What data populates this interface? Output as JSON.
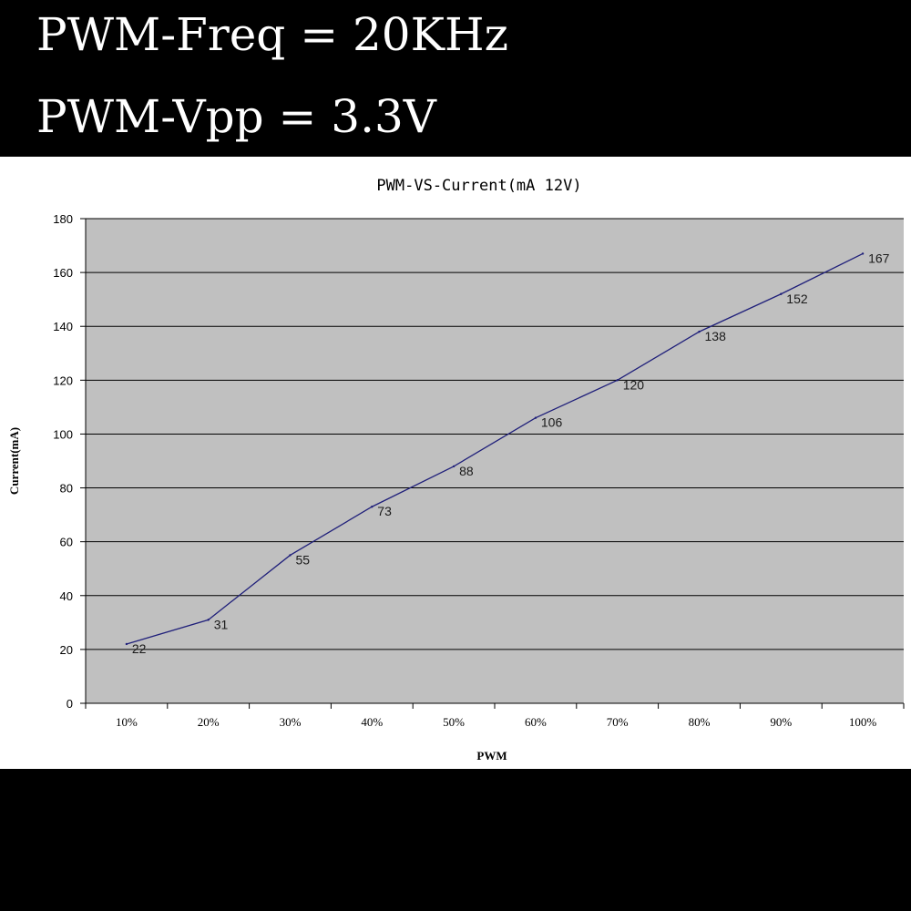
{
  "header": {
    "freq_text": "PWM-Freq = 20KHz",
    "vpp_text": "PWM-Vpp = 3.3V"
  },
  "colors": {
    "plot_background": "#c0c0c0",
    "line_color": "#1f1f7a",
    "grid_color": "#000000"
  },
  "chart_data": {
    "type": "line",
    "title": "PWM-VS-Current(mA 12V)",
    "xlabel": "PWM",
    "ylabel": "Current(mA)",
    "categories": [
      "10%",
      "20%",
      "30%",
      "40%",
      "50%",
      "60%",
      "70%",
      "80%",
      "90%",
      "100%"
    ],
    "values": [
      22,
      31,
      55,
      73,
      88,
      106,
      120,
      138,
      152,
      167
    ],
    "ylim": [
      0,
      180
    ],
    "yticks": [
      "0",
      "20",
      "40",
      "60",
      "80",
      "100",
      "120",
      "140",
      "160",
      "180"
    ],
    "grid": "horizontal",
    "data_labels": true,
    "legend": "none"
  }
}
